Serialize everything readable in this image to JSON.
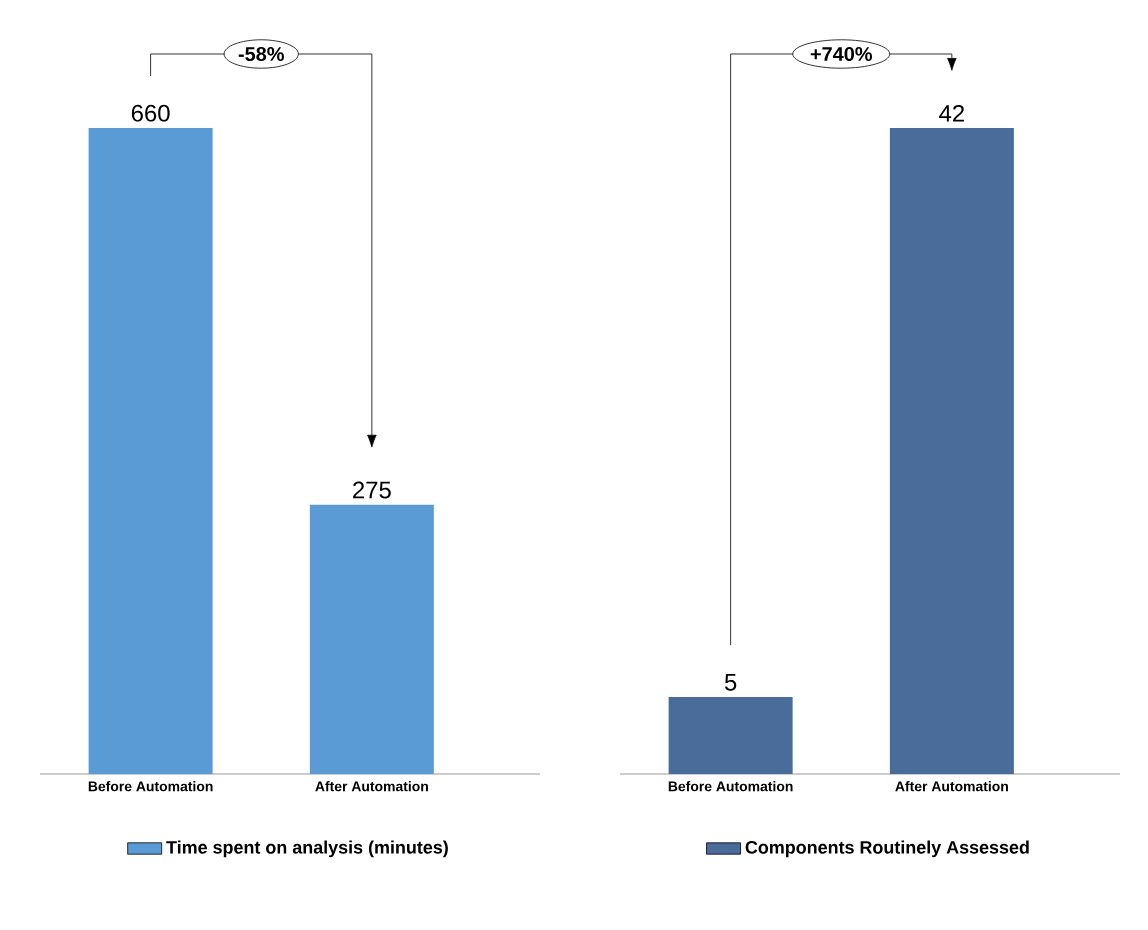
{
  "chart_data": [
    {
      "type": "bar",
      "categories": [
        "Before Automation",
        "After Automation"
      ],
      "series": [
        {
          "name": "Time spent on analysis (minutes)",
          "color": "#5b9bd5",
          "values": [
            660,
            275
          ]
        }
      ],
      "data_labels": true,
      "legend": "bottom",
      "annotations": [
        "-58%"
      ]
    },
    {
      "type": "bar",
      "categories": [
        "Before Automation",
        "After Automation"
      ],
      "series": [
        {
          "name": "Components Routinely Assessed",
          "color": "#4a6c9b",
          "values": [
            5,
            42
          ]
        }
      ],
      "data_labels": true,
      "legend": "bottom",
      "annotations": [
        "+740%"
      ]
    }
  ]
}
